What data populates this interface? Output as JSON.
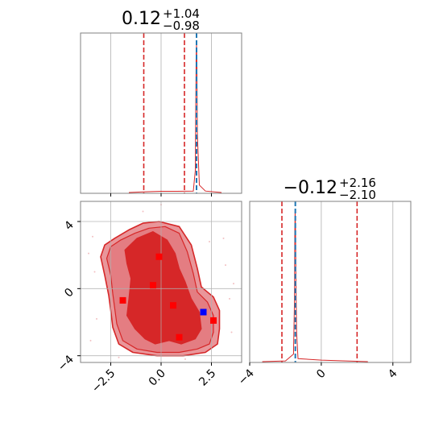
{
  "chart_data": {
    "type": "corner",
    "colors": {
      "contour_fill": "#d62728",
      "contour_light": "#e9969a",
      "contour_line": "#d62728",
      "truth_line": "#1f77b4",
      "marker_red": "#ff0000",
      "marker_blue": "#0000ff",
      "grid": "#b0b0b0",
      "axis": "#808080"
    },
    "grid": true,
    "panels": {
      "marginal_1": {
        "title_main": "0.12",
        "title_plus": "+1.04",
        "title_minus": "−0.98",
        "xlim": [
          -4,
          4
        ],
        "quantile_lines": [
          -0.86,
          1.16
        ],
        "truth_line": 1.76,
        "histogram_x": [
          -1.6,
          -0.8,
          0.0,
          0.8,
          1.6,
          1.7,
          1.72,
          1.74,
          1.76,
          1.78,
          1.8,
          1.9,
          2.2,
          3.0
        ],
        "histogram_y": [
          0.0,
          0.005,
          0.008,
          0.008,
          0.01,
          0.15,
          0.55,
          0.92,
          1.0,
          0.85,
          0.4,
          0.05,
          0.01,
          0.0
        ]
      },
      "marginal_2": {
        "title_main": "−0.12",
        "title_plus": "+2.16",
        "title_minus": "−2.10",
        "xlim": [
          -4,
          5
        ],
        "xticks": [
          "−4",
          "0",
          "4"
        ],
        "xtick_values": [
          -4,
          0,
          4
        ],
        "quantile_lines": [
          -2.2,
          2.0
        ],
        "truth_line": -1.45,
        "histogram_x": [
          -3.3,
          -2.0,
          -1.55,
          -1.5,
          -1.48,
          -1.46,
          -1.44,
          -1.42,
          -1.38,
          -1.3,
          0.0,
          2.6
        ],
        "histogram_y": [
          0.0,
          0.005,
          0.05,
          0.4,
          0.85,
          1.0,
          0.9,
          0.6,
          0.2,
          0.02,
          0.01,
          0.0
        ]
      },
      "joint": {
        "xlim": [
          -4,
          4
        ],
        "ylim": [
          -4.4,
          5.2
        ],
        "xticks": [
          "−2.5",
          "0.0",
          "2.5"
        ],
        "xtick_values": [
          -2.5,
          0.0,
          2.5
        ],
        "yticks": [
          "4",
          "0",
          "−4"
        ],
        "ytick_values": [
          4,
          0,
          -4
        ],
        "outer_contour": [
          [
            -2.8,
            2.6
          ],
          [
            -2.3,
            3.0
          ],
          [
            -1.6,
            3.5
          ],
          [
            -0.9,
            3.9
          ],
          [
            -0.1,
            4.0
          ],
          [
            0.9,
            3.7
          ],
          [
            1.5,
            2.6
          ],
          [
            1.8,
            1.2
          ],
          [
            2.0,
            0.1
          ],
          [
            2.6,
            -0.5
          ],
          [
            2.9,
            -1.3
          ],
          [
            2.9,
            -2.4
          ],
          [
            2.8,
            -3.3
          ],
          [
            2.2,
            -3.8
          ],
          [
            1.1,
            -4.0
          ],
          [
            -0.2,
            -4.0
          ],
          [
            -1.4,
            -3.8
          ],
          [
            -2.1,
            -3.3
          ],
          [
            -2.4,
            -2.3
          ],
          [
            -2.5,
            -1.3
          ],
          [
            -2.6,
            -0.4
          ],
          [
            -2.8,
            0.8
          ],
          [
            -3.0,
            1.9
          ]
        ],
        "middle_contour": [
          [
            -2.5,
            2.5
          ],
          [
            -2.0,
            2.9
          ],
          [
            -1.3,
            3.3
          ],
          [
            -0.6,
            3.6
          ],
          [
            0.2,
            3.7
          ],
          [
            0.9,
            3.3
          ],
          [
            1.3,
            2.2
          ],
          [
            1.6,
            0.9
          ],
          [
            1.8,
            -0.2
          ],
          [
            2.3,
            -0.8
          ],
          [
            2.6,
            -1.6
          ],
          [
            2.6,
            -2.6
          ],
          [
            2.4,
            -3.3
          ],
          [
            1.8,
            -3.6
          ],
          [
            0.9,
            -3.8
          ],
          [
            -0.2,
            -3.8
          ],
          [
            -1.2,
            -3.6
          ],
          [
            -1.9,
            -3.1
          ],
          [
            -2.2,
            -2.1
          ],
          [
            -2.3,
            -1.2
          ],
          [
            -2.4,
            -0.3
          ],
          [
            -2.5,
            0.8
          ],
          [
            -2.7,
            1.8
          ]
        ],
        "inner_contour": [
          [
            -1.8,
            2.3
          ],
          [
            -1.2,
            3.0
          ],
          [
            -0.4,
            3.4
          ],
          [
            0.3,
            2.9
          ],
          [
            0.7,
            2.1
          ],
          [
            0.9,
            1.2
          ],
          [
            1.2,
            0.4
          ],
          [
            1.5,
            -0.6
          ],
          [
            1.9,
            -1.4
          ],
          [
            2.0,
            -2.4
          ],
          [
            1.7,
            -3.0
          ],
          [
            1.0,
            -3.3
          ],
          [
            0.4,
            -3.1
          ],
          [
            -0.3,
            -3.3
          ],
          [
            -0.8,
            -3.0
          ],
          [
            -1.3,
            -2.4
          ],
          [
            -1.7,
            -1.6
          ],
          [
            -1.6,
            -0.6
          ],
          [
            -1.5,
            0.6
          ],
          [
            -1.7,
            1.5
          ]
        ],
        "red_markers": [
          {
            "x": -0.1,
            "y": 1.9
          },
          {
            "x": -0.4,
            "y": 0.2
          },
          {
            "x": -1.9,
            "y": -0.7
          },
          {
            "x": 0.6,
            "y": -1.0
          },
          {
            "x": 2.6,
            "y": -1.9
          },
          {
            "x": 0.9,
            "y": -2.9
          }
        ],
        "blue_marker": {
          "x": 2.1,
          "y": -1.4
        },
        "faint_dots": [
          {
            "x": -3.4,
            "y": 3.1
          },
          {
            "x": -3.3,
            "y": 1.0
          },
          {
            "x": -3.2,
            "y": -1.8
          },
          {
            "x": -3.5,
            "y": -3.1
          },
          {
            "x": 3.2,
            "y": 1.4
          },
          {
            "x": 3.4,
            "y": -0.6
          },
          {
            "x": 3.5,
            "y": -2.6
          },
          {
            "x": 3.1,
            "y": 3.0
          },
          {
            "x": -0.9,
            "y": 4.6
          },
          {
            "x": 1.2,
            "y": -4.2
          },
          {
            "x": -2.1,
            "y": -4.1
          },
          {
            "x": 2.4,
            "y": 2.8
          },
          {
            "x": -3.6,
            "y": 2.1
          },
          {
            "x": 3.6,
            "y": 0.3
          },
          {
            "x": 0.0,
            "y": 5.0
          }
        ]
      }
    }
  }
}
